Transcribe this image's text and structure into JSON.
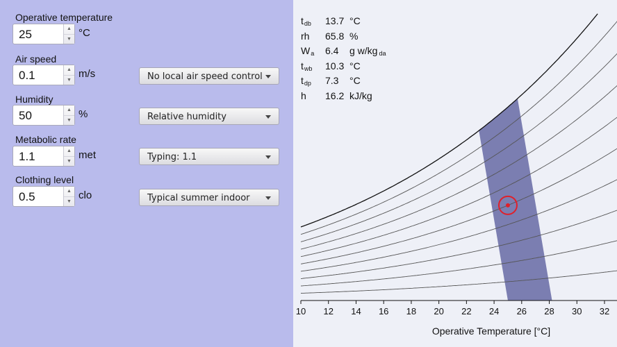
{
  "inputs": {
    "operative_temperature": {
      "label": "Operative temperature",
      "value": "25",
      "unit": "°C"
    },
    "air_speed": {
      "label": "Air speed",
      "value": "0.1",
      "unit": "m/s",
      "select": "No local air speed control"
    },
    "humidity": {
      "label": "Humidity",
      "value": "50",
      "unit": "%",
      "select": "Relative humidity"
    },
    "metabolic_rate": {
      "label": "Metabolic rate",
      "value": "1.1",
      "unit": "met",
      "select": "Typing: 1.1"
    },
    "clothing_level": {
      "label": "Clothing level",
      "value": "0.5",
      "unit": "clo",
      "select": "Typical summer indoor"
    }
  },
  "readouts": [
    {
      "sym": "t",
      "sub": "db",
      "value": "13.7",
      "unit": "°C",
      "unit_sub": ""
    },
    {
      "sym": "rh",
      "sub": "",
      "value": "65.8",
      "unit": "%",
      "unit_sub": ""
    },
    {
      "sym": "W",
      "sub": "a",
      "value": "6.4",
      "unit": "g w/kg",
      "unit_sub": "da"
    },
    {
      "sym": "t",
      "sub": "wb",
      "value": "10.3",
      "unit": "°C",
      "unit_sub": ""
    },
    {
      "sym": "t",
      "sub": "dp",
      "value": "7.3",
      "unit": "°C",
      "unit_sub": ""
    },
    {
      "sym": "h",
      "sub": "",
      "value": "16.2",
      "unit": "kJ/kg",
      "unit_sub": ""
    }
  ],
  "chart_data": {
    "type": "line",
    "xlabel": "Operative Temperature [°C]",
    "xlim": [
      10,
      32
    ],
    "xticks": [
      10,
      12,
      14,
      16,
      18,
      20,
      22,
      24,
      26,
      28,
      30,
      32
    ],
    "relative_humidity_curves": [
      100,
      90,
      80,
      70,
      60,
      50,
      40,
      30,
      20,
      10
    ],
    "comfort_zone": {
      "color": "#5b5e9e",
      "bottom": [
        25.0,
        28.2
      ],
      "top": [
        22.9,
        25.7
      ],
      "top_rh": 100
    },
    "current_point": {
      "x": 25,
      "rh": 50,
      "color": "#e0202a"
    }
  }
}
